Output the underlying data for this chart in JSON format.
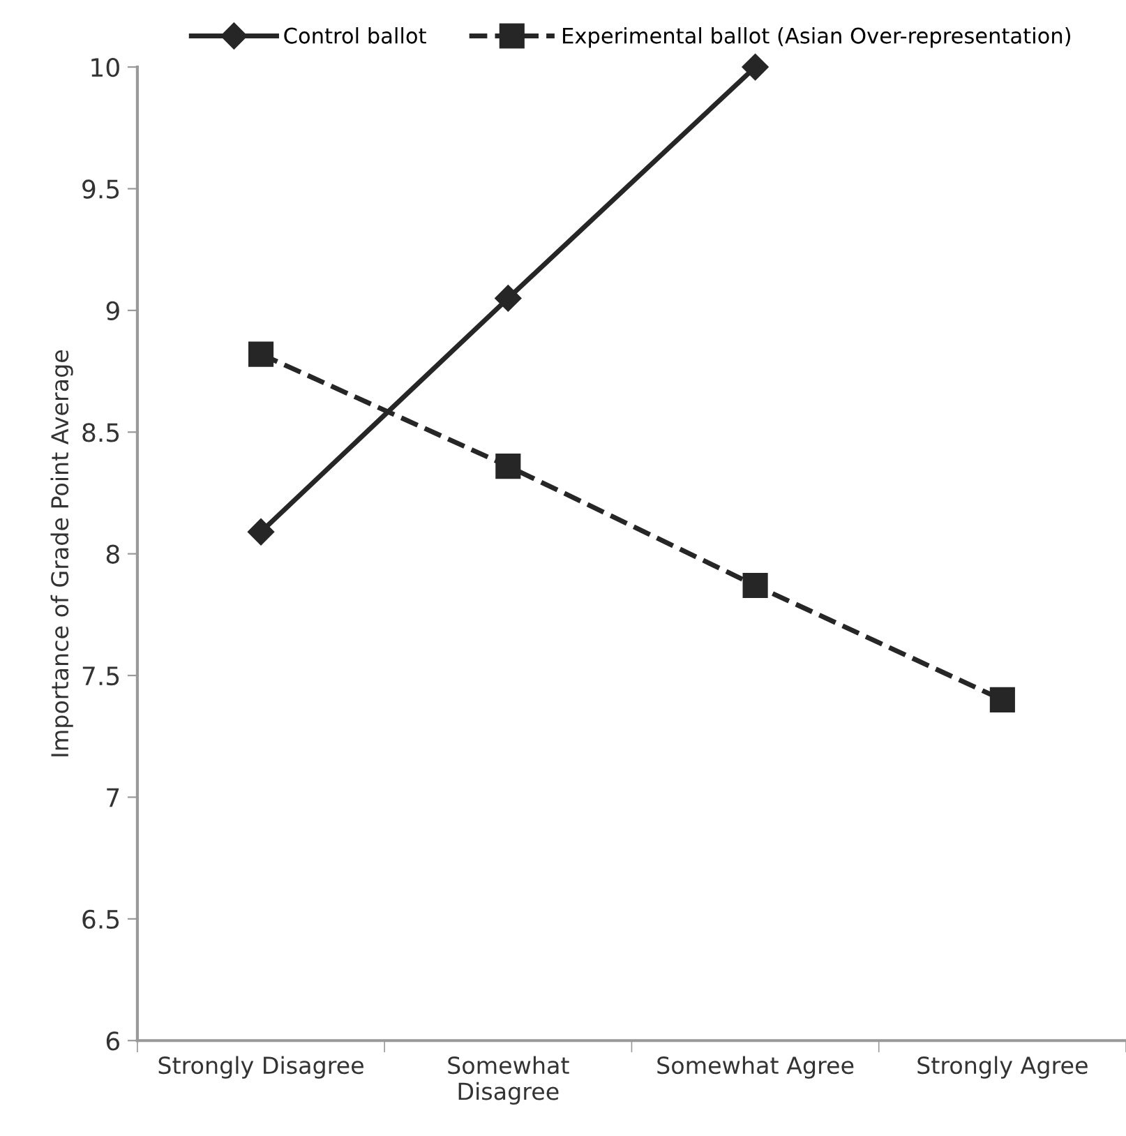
{
  "chart_data": {
    "type": "line",
    "ylabel": "Importance of Grade Point Average",
    "categories": [
      "Strongly Disagree",
      "Somewhat\nDisagree",
      "Somewhat Agree",
      "Strongly Agree"
    ],
    "series": [
      {
        "name": "Control ballot",
        "color": "#262626",
        "marker": "diamond",
        "line_style": "solid",
        "values": [
          8.09,
          9.05,
          10.0,
          null
        ]
      },
      {
        "name": "Experimental ballot (Asian Over-representation)",
        "color": "#262626",
        "marker": "square",
        "line_style": "dashed",
        "values": [
          8.82,
          8.36,
          7.87,
          7.4
        ]
      }
    ],
    "ylim": [
      6,
      10
    ],
    "yticks": [
      6,
      6.5,
      7,
      7.5,
      8,
      8.5,
      9,
      9.5,
      10
    ],
    "grid": false,
    "legend": "top"
  }
}
